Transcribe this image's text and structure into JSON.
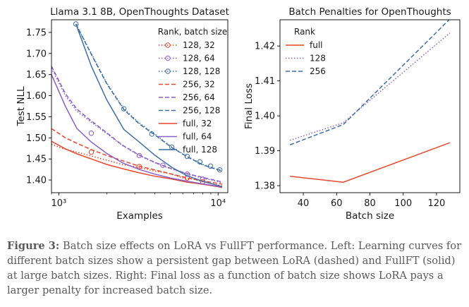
{
  "colors": {
    "red": "#e8472b",
    "purple": "#8c5ec9",
    "blue": "#3d6fa8"
  },
  "chart_data": [
    {
      "type": "line",
      "title": "Llama 3.1 8B, OpenThoughts Dataset",
      "xlabel": "Examples",
      "ylabel": "Test NLL",
      "xscale": "log",
      "xlim": [
        900,
        11500
      ],
      "ylim": [
        1.37,
        1.78
      ],
      "xticks": [
        {
          "value": 1000,
          "label": "10³"
        },
        {
          "value": 10000,
          "label": "10⁴"
        }
      ],
      "yticks": [
        1.4,
        1.45,
        1.5,
        1.55,
        1.6,
        1.65,
        1.7,
        1.75
      ],
      "legend": {
        "title": "Rank, batch size",
        "placement": "top-right"
      },
      "series": [
        {
          "name": "128, 32",
          "color": "red",
          "style": "dotted",
          "marker": "circle",
          "x": [
            900,
            1000,
            1100,
            1300,
            1600,
            2000,
            2500,
            3000,
            4000,
            5000,
            6000,
            7000,
            8000,
            9000,
            10000,
            10600
          ],
          "y": [
            1.485,
            1.478,
            1.473,
            1.466,
            1.457,
            1.447,
            1.437,
            1.432,
            1.421,
            1.415,
            1.405,
            1.402,
            1.396,
            1.392,
            1.388,
            1.386
          ],
          "markers_x": [
            1600,
            3200,
            6400,
            8000
          ],
          "markers_y": [
            1.466,
            1.432,
            1.405,
            1.396
          ]
        },
        {
          "name": "128, 64",
          "color": "purple",
          "style": "dotted",
          "marker": "circle",
          "x": [
            900,
            1100,
            1300,
            1600,
            2000,
            2500,
            3200,
            4000,
            5000,
            6400,
            8000,
            10000,
            10600
          ],
          "y": [
            1.665,
            1.6,
            1.563,
            1.537,
            1.51,
            1.482,
            1.458,
            1.441,
            1.427,
            1.414,
            1.405,
            1.396,
            1.393
          ],
          "markers_x": [
            1600,
            3200,
            4500,
            6400,
            8000
          ],
          "markers_y": [
            1.511,
            1.458,
            1.435,
            1.414,
            1.402
          ]
        },
        {
          "name": "128, 128",
          "color": "blue",
          "style": "dotted",
          "marker": "circle",
          "x": [
            1280,
            1600,
            2000,
            2560,
            3200,
            4000,
            5120,
            6400,
            8000,
            10000,
            10600
          ],
          "y": [
            1.77,
            1.7,
            1.63,
            1.569,
            1.535,
            1.509,
            1.478,
            1.456,
            1.437,
            1.425,
            1.423
          ],
          "markers_x": [
            1280,
            2560,
            3840,
            5120,
            6400,
            7680,
            8960,
            10240
          ],
          "markers_y": [
            1.77,
            1.569,
            1.509,
            1.478,
            1.456,
            1.443,
            1.433,
            1.424
          ]
        },
        {
          "name": "256, 32",
          "color": "red",
          "style": "dashed",
          "marker": "",
          "x": [
            900,
            1100,
            1300,
            1600,
            2000,
            2500,
            3200,
            4000,
            5000,
            6400,
            8000,
            10000,
            10600
          ],
          "y": [
            1.522,
            1.5,
            1.487,
            1.472,
            1.458,
            1.446,
            1.433,
            1.424,
            1.415,
            1.405,
            1.398,
            1.392,
            1.39
          ]
        },
        {
          "name": "256, 64",
          "color": "purple",
          "style": "dashed",
          "marker": "",
          "x": [
            900,
            1100,
            1300,
            1600,
            2000,
            2500,
            3200,
            4000,
            5000,
            6400,
            8000,
            10000,
            10600
          ],
          "y": [
            1.67,
            1.605,
            1.568,
            1.54,
            1.512,
            1.483,
            1.459,
            1.442,
            1.428,
            1.415,
            1.406,
            1.398,
            1.395
          ]
        },
        {
          "name": "256, 128",
          "color": "blue",
          "style": "dashed",
          "marker": "",
          "x": [
            1280,
            1600,
            2000,
            2560,
            3200,
            4000,
            5120,
            6400,
            8000,
            10000,
            10600
          ],
          "y": [
            1.77,
            1.698,
            1.628,
            1.567,
            1.533,
            1.507,
            1.477,
            1.455,
            1.436,
            1.424,
            1.422
          ]
        },
        {
          "name": "full, 32",
          "color": "red",
          "style": "solid",
          "marker": "",
          "x": [
            900,
            1100,
            1300,
            1600,
            2000,
            2500,
            3200,
            4000,
            5000,
            6400,
            8000,
            10000,
            10600
          ],
          "y": [
            1.492,
            1.474,
            1.462,
            1.45,
            1.437,
            1.427,
            1.417,
            1.409,
            1.403,
            1.395,
            1.39,
            1.384,
            1.382
          ]
        },
        {
          "name": "full, 64",
          "color": "purple",
          "style": "solid",
          "marker": "",
          "x": [
            900,
            1100,
            1300,
            1600,
            2000,
            2500,
            3200,
            4000,
            5000,
            6400,
            8000,
            10000,
            10600
          ],
          "y": [
            1.65,
            1.575,
            1.522,
            1.49,
            1.463,
            1.441,
            1.425,
            1.414,
            1.405,
            1.397,
            1.391,
            1.385,
            1.383
          ]
        },
        {
          "name": "full, 128",
          "color": "blue",
          "style": "solid",
          "marker": "",
          "x": [
            1280,
            1600,
            2000,
            2560,
            3200,
            4000,
            5120,
            6400,
            8000,
            10000,
            10600
          ],
          "y": [
            1.77,
            1.67,
            1.59,
            1.52,
            1.49,
            1.459,
            1.43,
            1.41,
            1.397,
            1.387,
            1.384
          ]
        }
      ]
    },
    {
      "type": "line",
      "title": "Batch Penalties for OpenThoughts",
      "xlabel": "Batch size",
      "ylabel": "Final Loss",
      "xlim": [
        26,
        134
      ],
      "ylim": [
        1.378,
        1.4275
      ],
      "xticks": [
        40,
        60,
        80,
        100,
        120
      ],
      "yticks": [
        1.38,
        1.39,
        1.4,
        1.41,
        1.42
      ],
      "legend": {
        "title": "Rank",
        "placement": "top-left"
      },
      "series": [
        {
          "name": "full",
          "color": "red",
          "style": "solid",
          "x": [
            32,
            64,
            128
          ],
          "y": [
            1.3827,
            1.381,
            1.3923
          ]
        },
        {
          "name": "128",
          "color": "purple",
          "style": "dotted",
          "x": [
            32,
            64,
            128
          ],
          "y": [
            1.393,
            1.398,
            1.4237
          ]
        },
        {
          "name": "256",
          "color": "blue",
          "style": "dashed",
          "x": [
            32,
            64,
            128
          ],
          "y": [
            1.3917,
            1.3975,
            1.4277
          ]
        }
      ]
    }
  ],
  "caption": {
    "label": "Figure 3:",
    "text": " Batch size effects on LoRA vs FullFT performance. Left: Learning curves for different batch sizes show a persistent gap between LoRA (dashed) and FullFT (solid) at large batch sizes. Right: Final loss as a function of batch size shows LoRA pays a larger penalty for increased batch size."
  }
}
